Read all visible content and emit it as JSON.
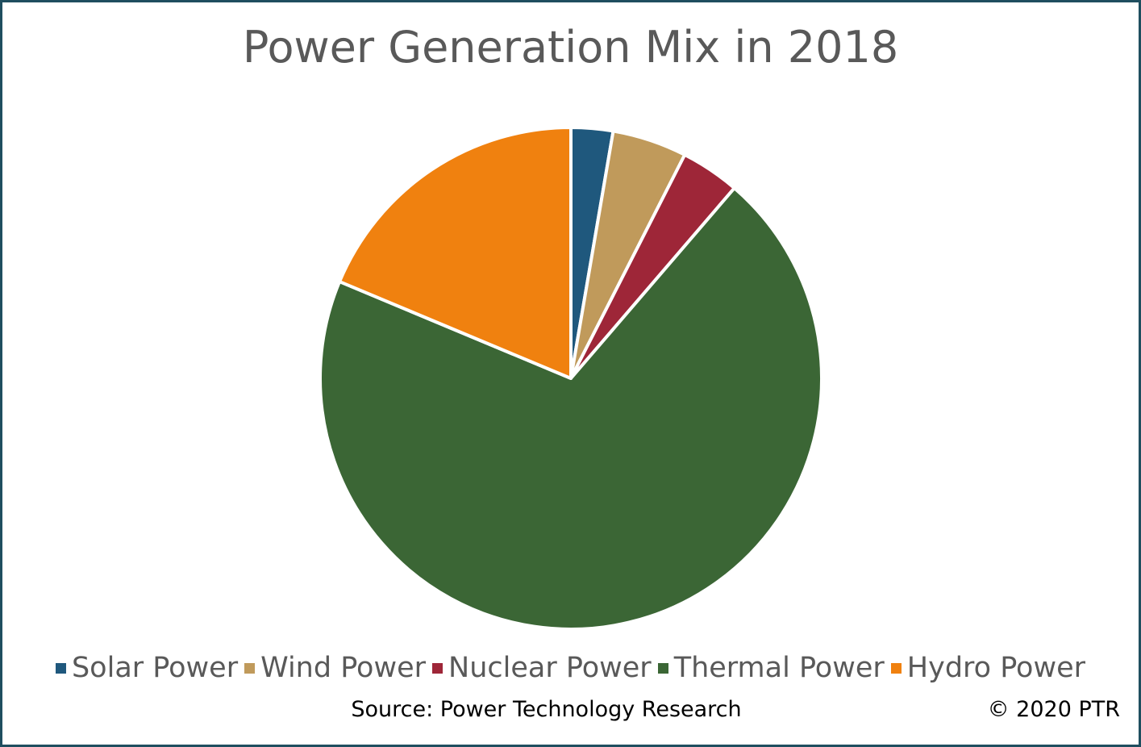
{
  "chart_data": {
    "type": "pie",
    "title": "Power Generation Mix in 2018",
    "slices": [
      {
        "label": "Solar Power",
        "value": 2.7,
        "color": "#1f587d"
      },
      {
        "label": "Wind Power",
        "value": 4.8,
        "color": "#c09a5b"
      },
      {
        "label": "Nuclear Power",
        "value": 3.8,
        "color": "#9e2638"
      },
      {
        "label": "Thermal Power",
        "value": 70.0,
        "color": "#3b6635"
      },
      {
        "label": "Hydro Power",
        "value": 18.7,
        "color": "#f0810f"
      }
    ],
    "legend_position": "bottom"
  },
  "footer": {
    "source": "Source: Power Technology Research",
    "copyright": "© 2020 PTR"
  },
  "colors": {
    "border": "#1f4e5f",
    "title_text": "#595959"
  }
}
